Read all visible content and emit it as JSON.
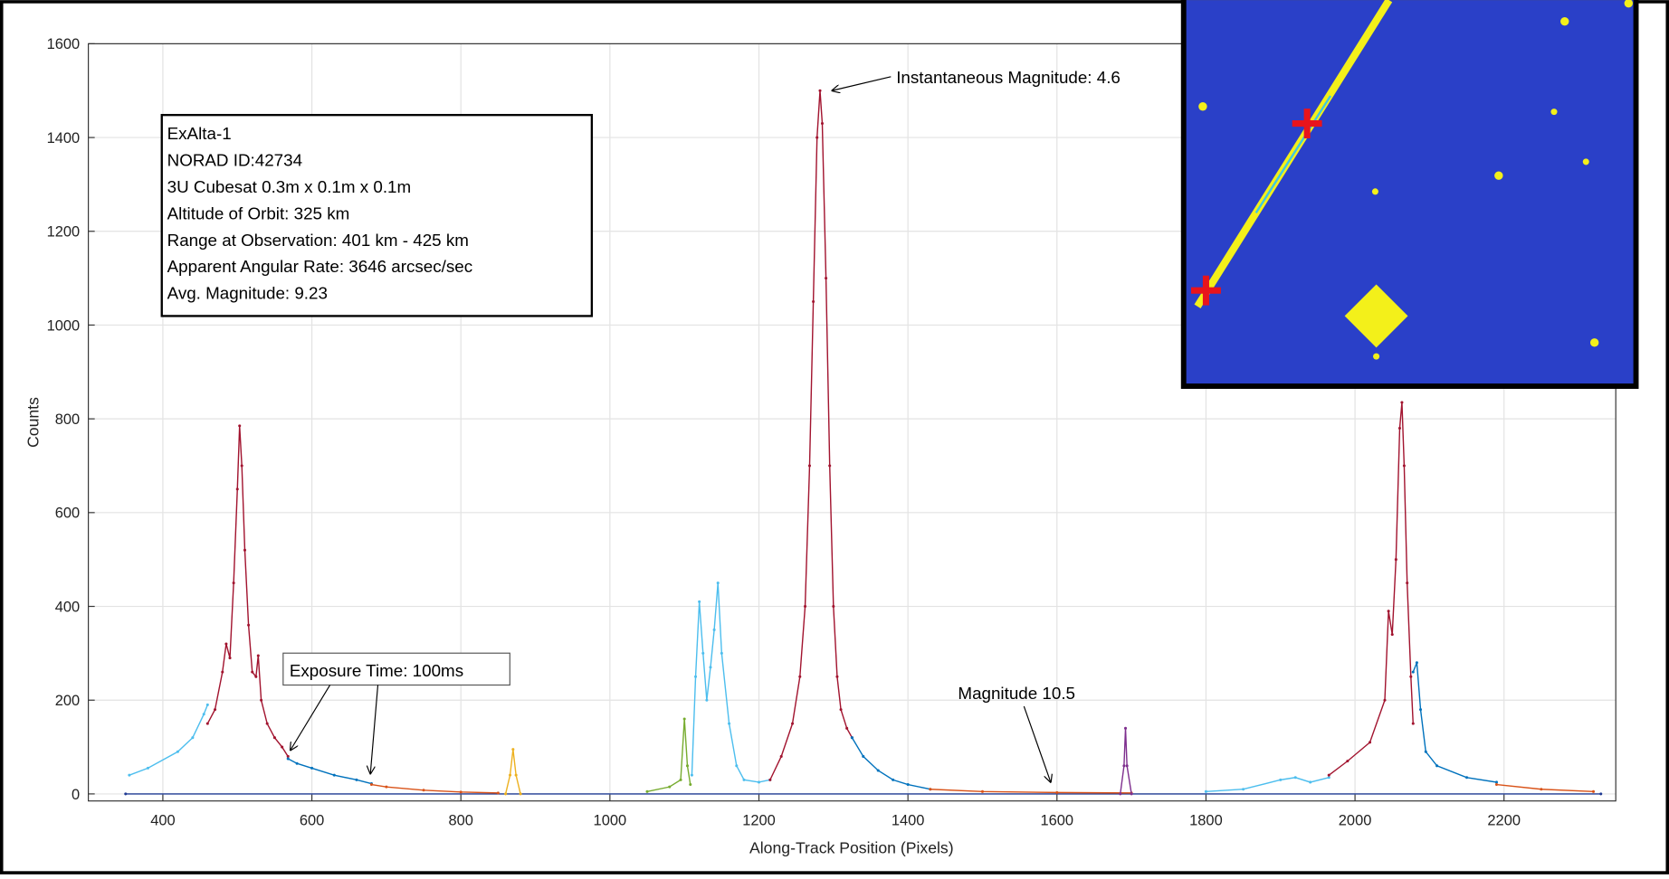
{
  "chart_data": {
    "type": "line",
    "x_label": "Along-Track Position (Pixels)",
    "y_label": "Counts",
    "xlim": [
      300,
      2350
    ],
    "ylim": [
      -15,
      1600
    ],
    "xticks": [
      400,
      600,
      800,
      1000,
      1200,
      1400,
      1600,
      1800,
      2000,
      2200
    ],
    "yticks": [
      0,
      200,
      400,
      600,
      800,
      1000,
      1200,
      1400,
      1600
    ],
    "grid": true,
    "info_box": [
      "ExAlta-1",
      "NORAD ID:42734",
      "3U Cubesat 0.3m x 0.1m x 0.1m",
      "Altitude of Orbit: 325 km",
      "Range at Observation: 401 km - 425 km",
      "Apparent Angular Rate: 3646 arcsec/sec",
      "Avg. Magnitude: 9.23"
    ],
    "annotations": [
      "Instantaneous Magnitude: 4.6",
      "Exposure Time: 100ms",
      "Magnitude 10.5"
    ],
    "series": [
      {
        "color": "#1f3a93",
        "x": [
          350,
          2330
        ],
        "values": [
          0,
          0
        ]
      },
      {
        "color": "#4dbeee",
        "x": [
          355,
          380,
          420,
          440,
          455,
          460
        ],
        "values": [
          40,
          55,
          90,
          120,
          170,
          190
        ]
      },
      {
        "color": "#a2142f",
        "x": [
          460,
          470,
          480,
          485,
          490,
          495,
          500,
          503,
          506,
          510,
          515,
          520,
          525,
          528,
          532,
          540,
          550,
          560,
          568
        ],
        "values": [
          150,
          180,
          260,
          320,
          290,
          450,
          650,
          785,
          700,
          520,
          360,
          260,
          250,
          295,
          200,
          150,
          120,
          100,
          80
        ]
      },
      {
        "color": "#0072bd",
        "x": [
          568,
          580,
          600,
          630,
          660,
          680
        ],
        "values": [
          75,
          65,
          55,
          40,
          30,
          22
        ]
      },
      {
        "color": "#d95319",
        "x": [
          680,
          700,
          750,
          800,
          850
        ],
        "values": [
          20,
          15,
          8,
          4,
          2
        ]
      },
      {
        "color": "#edb120",
        "x": [
          860,
          866,
          870,
          874,
          880
        ],
        "values": [
          0,
          40,
          95,
          40,
          0
        ]
      },
      {
        "color": "#77ac30",
        "x": [
          1050,
          1080,
          1095,
          1100,
          1104,
          1108
        ],
        "values": [
          5,
          15,
          30,
          160,
          60,
          20
        ]
      },
      {
        "color": "#4dbeee",
        "x": [
          1110,
          1115,
          1120,
          1125,
          1130,
          1135,
          1140,
          1145,
          1150,
          1160,
          1170,
          1180,
          1200,
          1215
        ],
        "values": [
          40,
          250,
          410,
          300,
          200,
          270,
          350,
          450,
          300,
          150,
          60,
          30,
          25,
          30
        ]
      },
      {
        "color": "#a2142f",
        "x": [
          1215,
          1230,
          1245,
          1255,
          1262,
          1268,
          1273,
          1278,
          1282,
          1285,
          1290,
          1295,
          1300,
          1305,
          1310,
          1318,
          1325
        ],
        "values": [
          30,
          80,
          150,
          250,
          400,
          700,
          1050,
          1400,
          1500,
          1430,
          1100,
          700,
          400,
          250,
          180,
          140,
          120
        ]
      },
      {
        "color": "#0072bd",
        "x": [
          1325,
          1340,
          1360,
          1380,
          1400,
          1430
        ],
        "values": [
          120,
          80,
          50,
          30,
          20,
          10
        ]
      },
      {
        "color": "#d95319",
        "x": [
          1430,
          1500,
          1600,
          1700
        ],
        "values": [
          10,
          5,
          3,
          2
        ]
      },
      {
        "color": "#7e2f8e",
        "x": [
          1685,
          1690,
          1692,
          1694,
          1700
        ],
        "values": [
          0,
          60,
          140,
          60,
          0
        ]
      },
      {
        "color": "#4dbeee",
        "x": [
          1800,
          1850,
          1900,
          1920,
          1940,
          1965
        ],
        "values": [
          5,
          10,
          30,
          35,
          25,
          35
        ]
      },
      {
        "color": "#a2142f",
        "x": [
          1965,
          1990,
          2020,
          2040,
          2045,
          2050,
          2055,
          2060,
          2063,
          2066,
          2070,
          2075,
          2078
        ],
        "values": [
          40,
          70,
          110,
          200,
          390,
          340,
          500,
          780,
          835,
          700,
          450,
          250,
          150
        ]
      },
      {
        "color": "#0072bd",
        "x": [
          2078,
          2083,
          2088,
          2095,
          2110,
          2150,
          2190
        ],
        "values": [
          260,
          280,
          180,
          90,
          60,
          35,
          25
        ]
      },
      {
        "color": "#d95319",
        "x": [
          2190,
          2250,
          2320
        ],
        "values": [
          20,
          10,
          5
        ]
      }
    ]
  }
}
